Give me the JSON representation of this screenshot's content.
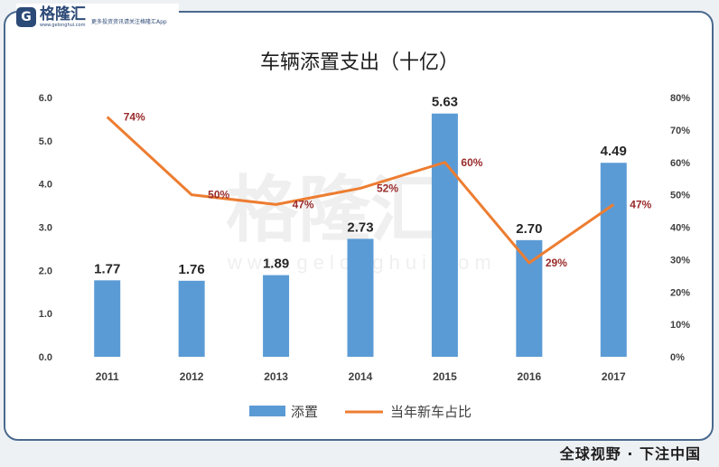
{
  "brand": {
    "name": "格隆汇",
    "mark": "G",
    "url": "www.gelonghui.com",
    "slogan": "更多投资资讯请关注格隆汇App"
  },
  "footer": {
    "text": "全球视野 · 下注中国"
  },
  "watermark": {
    "text": "格隆汇",
    "url": "www.gelonghui.com"
  },
  "colors": {
    "bar": "#5b9bd5",
    "line": "#ed7d31",
    "line_label": "#9a2b2b"
  },
  "chart_data": {
    "type": "bar",
    "title": "车辆添置支出（十亿）",
    "categories": [
      "2011",
      "2012",
      "2013",
      "2014",
      "2015",
      "2016",
      "2017"
    ],
    "series": [
      {
        "name": "添置",
        "type": "bar",
        "axis": "left",
        "values": [
          1.77,
          1.76,
          1.89,
          2.73,
          5.63,
          2.7,
          4.49
        ],
        "labels": [
          "1.77",
          "1.76",
          "1.89",
          "2.73",
          "5.63",
          "2.70",
          "4.49"
        ]
      },
      {
        "name": "当年新车占比",
        "type": "line",
        "axis": "right",
        "values": [
          74,
          50,
          47,
          52,
          60,
          29,
          47
        ],
        "labels": [
          "74%",
          "50%",
          "47%",
          "52%",
          "60%",
          "29%",
          "47%"
        ]
      }
    ],
    "y_left": {
      "min": 0,
      "max": 6,
      "ticks": [
        0,
        1,
        2,
        3,
        4,
        5,
        6
      ],
      "tick_labels": [
        "0.0",
        "1.0",
        "2.0",
        "3.0",
        "4.0",
        "5.0",
        "6.0"
      ]
    },
    "y_right": {
      "min": 0,
      "max": 80,
      "ticks": [
        0,
        10,
        20,
        30,
        40,
        50,
        60,
        70,
        80
      ],
      "tick_labels": [
        "0%",
        "10%",
        "20%",
        "30%",
        "40%",
        "50%",
        "60%",
        "70%",
        "80%"
      ]
    },
    "grid": false,
    "legend_position": "bottom"
  }
}
